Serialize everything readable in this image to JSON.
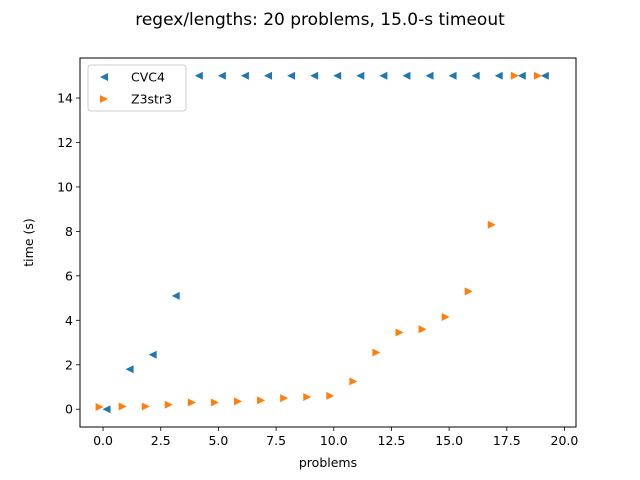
{
  "chart_data": {
    "type": "scatter",
    "title": "regex/lengths: 20 problems, 15.0-s timeout",
    "xlabel": "problems",
    "ylabel": "time (s)",
    "xlim": [
      -1.0,
      20.5
    ],
    "ylim": [
      -0.8,
      15.8
    ],
    "xticks": [
      0.0,
      2.5,
      5.0,
      7.5,
      10.0,
      12.5,
      15.0,
      17.5,
      20.0
    ],
    "xtick_labels": [
      "0.0",
      "2.5",
      "5.0",
      "7.5",
      "10.0",
      "12.5",
      "15.0",
      "17.5",
      "20.0"
    ],
    "yticks": [
      0,
      2,
      4,
      6,
      8,
      10,
      12,
      14
    ],
    "ytick_labels": [
      "0",
      "2",
      "4",
      "6",
      "8",
      "10",
      "12",
      "14"
    ],
    "grid": false,
    "legend_position": "top-left",
    "series": [
      {
        "name": "CVC4",
        "marker": "triangle-left",
        "color": "#1f77b4",
        "offset": 0.15,
        "x": [
          0,
          1,
          2,
          3,
          4,
          5,
          6,
          7,
          8,
          9,
          10,
          11,
          12,
          13,
          14,
          15,
          16,
          17,
          18,
          19
        ],
        "y": [
          0.0,
          1.8,
          2.45,
          5.1,
          15.0,
          15.0,
          15.0,
          15.0,
          15.0,
          15.0,
          15.0,
          15.0,
          15.0,
          15.0,
          15.0,
          15.0,
          15.0,
          15.0,
          15.0,
          15.0
        ]
      },
      {
        "name": "Z3str3",
        "marker": "triangle-right",
        "color": "#ff7f0e",
        "offset": -0.15,
        "x": [
          0,
          1,
          2,
          3,
          4,
          5,
          6,
          7,
          8,
          9,
          10,
          11,
          12,
          13,
          14,
          15,
          16,
          17,
          18,
          19
        ],
        "y": [
          0.1,
          0.12,
          0.12,
          0.2,
          0.3,
          0.3,
          0.35,
          0.4,
          0.5,
          0.55,
          0.6,
          1.25,
          2.55,
          3.45,
          3.6,
          4.15,
          5.3,
          8.3,
          15.0,
          15.0
        ]
      }
    ]
  }
}
